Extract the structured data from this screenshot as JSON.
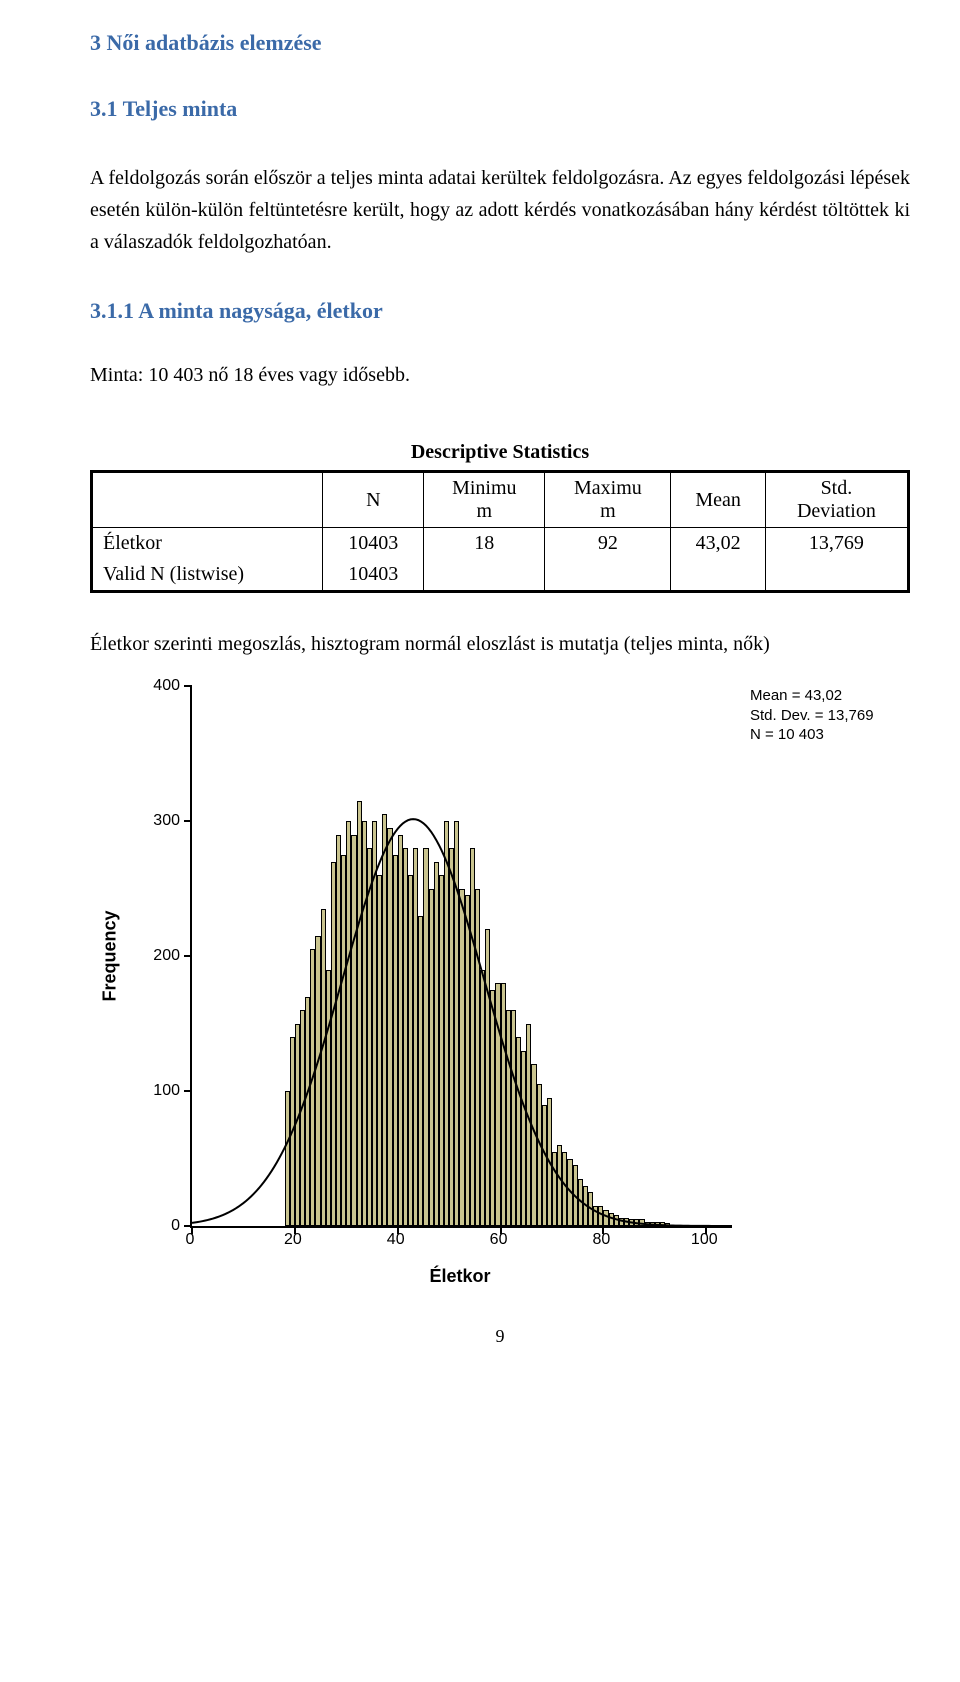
{
  "headings": {
    "h1": "3   Női adatbázis elemzése",
    "h2": "3.1   Teljes minta",
    "h3": "3.1.1   A minta nagysága, életkor"
  },
  "paragraph": "A feldolgozás során először a teljes minta adatai kerültek feldolgozásra. Az egyes feldolgozási lépések esetén külön-külön feltüntetésre került, hogy az adott kérdés vonatkozásában hány kérdést töltöttek ki a válaszadók feldolgozhatóan.",
  "minta_line": "Minta: 10 403 nő 18 éves vagy idősebb.",
  "table": {
    "title": "Descriptive Statistics",
    "columns": [
      "",
      "N",
      "Minimum",
      "Maximum",
      "Mean",
      "Std. Deviation"
    ],
    "col_split": {
      "Minimum": [
        "Minimu",
        "m"
      ],
      "Maximum": [
        "Maximu",
        "m"
      ],
      "Std": [
        "Std.",
        "Deviation"
      ]
    },
    "rows": [
      {
        "label": "Életkor",
        "N": "10403",
        "min": "18",
        "max": "92",
        "mean": "43,02",
        "std": "13,769"
      },
      {
        "label": "Valid N (listwise)",
        "N": "10403",
        "min": "",
        "max": "",
        "mean": "",
        "std": ""
      }
    ]
  },
  "caption": "Életkor szerinti megoszlás, hisztogram normál eloszlást is mutatja (teljes minta, nők)",
  "histogram": {
    "ylabel": "Frequency",
    "xlabel": "Életkor",
    "xlim": [
      0,
      105
    ],
    "ylim": [
      0,
      400
    ],
    "yticks": [
      0,
      100,
      200,
      300,
      400
    ],
    "xticks": [
      0,
      20,
      40,
      60,
      80,
      100
    ],
    "bar_color": "#c9c48f",
    "bar_border": "#000000",
    "curve_color": "#000000",
    "curve_width": 2,
    "bin_width": 1,
    "bins_start": 18,
    "freq": [
      100,
      140,
      150,
      160,
      170,
      205,
      215,
      235,
      190,
      270,
      290,
      275,
      300,
      290,
      315,
      300,
      280,
      300,
      260,
      305,
      295,
      275,
      290,
      280,
      260,
      280,
      230,
      280,
      250,
      270,
      260,
      300,
      280,
      300,
      250,
      245,
      280,
      250,
      190,
      220,
      175,
      180,
      180,
      160,
      160,
      140,
      130,
      150,
      120,
      105,
      90,
      95,
      55,
      60,
      55,
      50,
      45,
      35,
      30,
      25,
      15,
      15,
      12,
      10,
      8,
      6,
      6,
      5,
      5,
      5,
      3,
      3,
      3,
      3,
      2
    ],
    "normal": {
      "mean": 43.02,
      "std": 13.769,
      "n": 10403
    },
    "annot": [
      "Mean = 43,02",
      "Std. Dev. = 13,769",
      "N = 10 403"
    ]
  },
  "page_number": "9"
}
